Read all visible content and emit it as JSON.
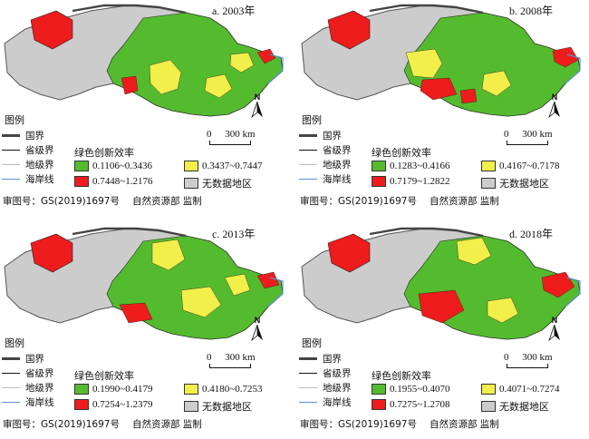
{
  "legend": {
    "title": "图例",
    "boundaries": [
      {
        "label": "国界",
        "color": "#444444"
      },
      {
        "label": "省级界",
        "color": "#111111"
      },
      {
        "label": "地级界",
        "color": "#bbbbbb"
      },
      {
        "label": "海岸线",
        "color": "#5b8fd6"
      }
    ],
    "efficiency_title": "绿色创新效率",
    "no_data_label": "无数据地区"
  },
  "scale_bar": {
    "zero": "0",
    "distance": "300 km"
  },
  "north_label": "N",
  "review_number": "审图号：GS(2019)1697号",
  "review_authority": "自然资源部 监制",
  "colors": {
    "low": "#55bb2e",
    "mid": "#f2ee4a",
    "high": "#ee1c1c",
    "no_data": "#cccccc"
  },
  "panels": [
    {
      "title": "a. 2003年",
      "classes": [
        "0.1106~0.3436",
        "0.3437~0.7447",
        "0.7448~1.2176"
      ]
    },
    {
      "title": "b. 2008年",
      "classes": [
        "0.1283~0.4166",
        "0.4167~0.7178",
        "0.7179~1.2822"
      ]
    },
    {
      "title": "c. 2013年",
      "classes": [
        "0.1990~0.4179",
        "0.4180~0.7253",
        "0.7254~1.2379"
      ]
    },
    {
      "title": "d. 2018年",
      "classes": [
        "0.1955~0.4070",
        "0.4071~0.7274",
        "0.7275~1.2708"
      ]
    }
  ]
}
